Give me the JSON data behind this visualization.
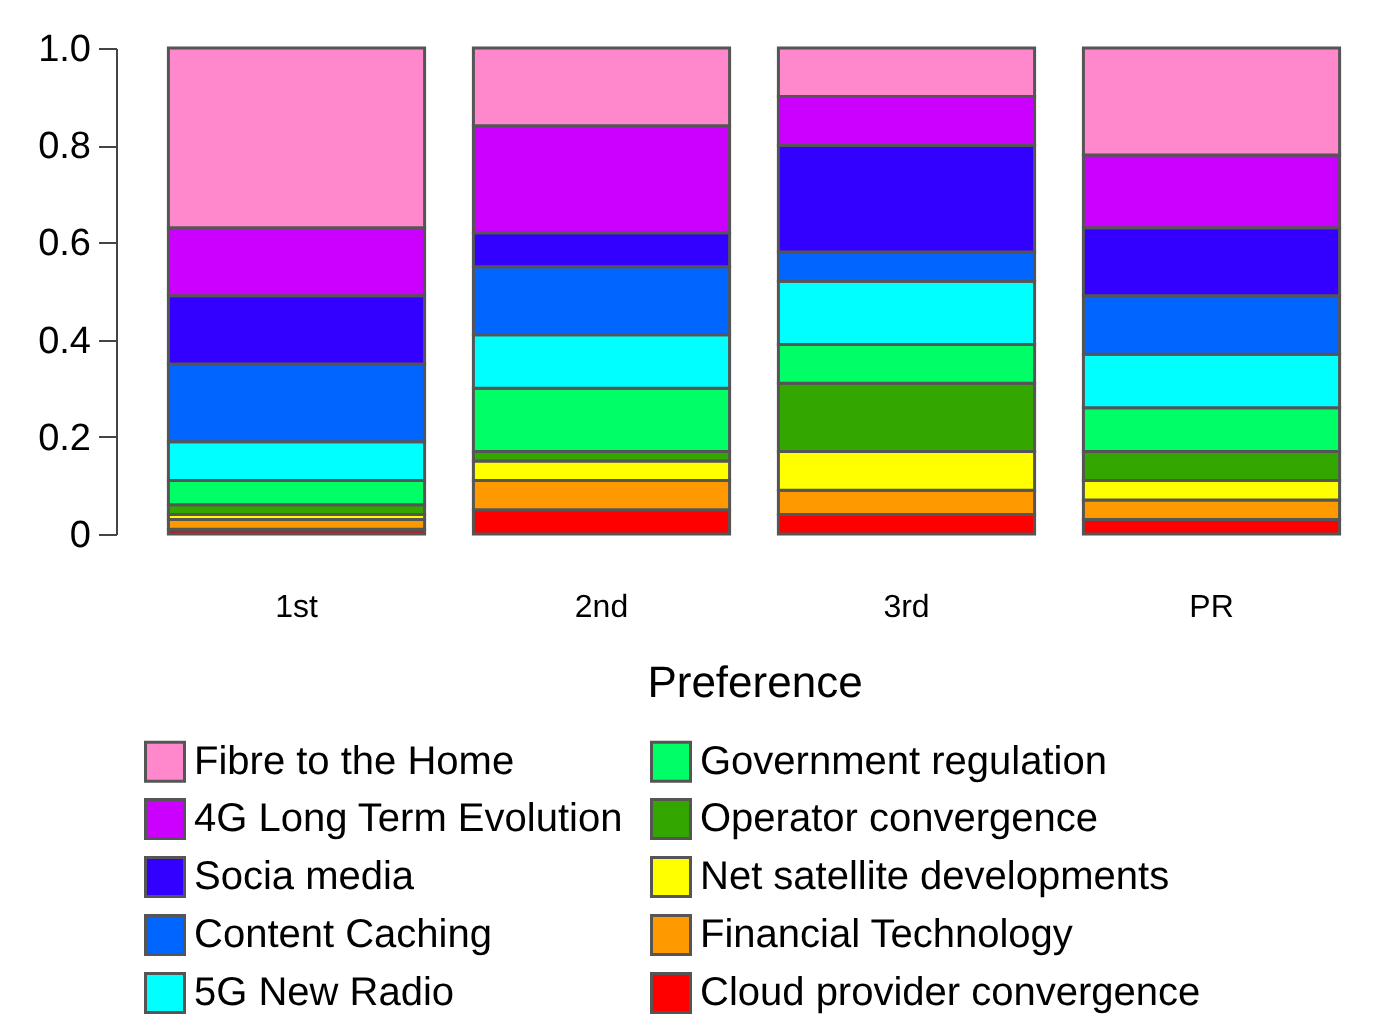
{
  "chart_data": {
    "type": "bar",
    "stacked": true,
    "xlabel": "Preference",
    "categories": [
      "1st",
      "2nd",
      "3rd",
      "PR"
    ],
    "ylim": [
      0,
      1
    ],
    "yticks": [
      0,
      {
        "value": 0.2,
        "label": "0.2"
      },
      {
        "value": 0.4,
        "label": "0.4"
      },
      {
        "value": 0.6,
        "label": "0.6"
      },
      {
        "value": 0.8,
        "label": "0.8"
      },
      {
        "value": 1,
        "label": "1.0"
      }
    ],
    "grid": false,
    "legend": "bottom",
    "series": [
      {
        "name": "Cloud provider convergence",
        "color": "#ff0000",
        "values": [
          0.01,
          0.05,
          0.04,
          0.03
        ]
      },
      {
        "name": "Financial Technology",
        "color": "#ff9900",
        "values": [
          0.02,
          0.06,
          0.05,
          0.04
        ]
      },
      {
        "name": "Net satellite developments",
        "color": "#ffff00",
        "values": [
          0.01,
          0.04,
          0.08,
          0.04
        ]
      },
      {
        "name": "Operator convergence",
        "color": "#33a700",
        "values": [
          0.02,
          0.02,
          0.14,
          0.06
        ]
      },
      {
        "name": "Government regulation",
        "color": "#00ff66",
        "values": [
          0.05,
          0.13,
          0.08,
          0.09
        ]
      },
      {
        "name": "5G New Radio",
        "color": "#00ffff",
        "values": [
          0.08,
          0.11,
          0.13,
          0.11
        ]
      },
      {
        "name": "Content Caching",
        "color": "#0066ff",
        "values": [
          0.16,
          0.14,
          0.06,
          0.12
        ]
      },
      {
        "name": "Socia media",
        "color": "#3300ff",
        "values": [
          0.14,
          0.07,
          0.22,
          0.14
        ]
      },
      {
        "name": "4G Long Term Evolution",
        "color": "#cc00ff",
        "values": [
          0.14,
          0.22,
          0.1,
          0.15
        ]
      },
      {
        "name": "Fibre to the Home",
        "color": "#ff88cc",
        "values": [
          0.37,
          0.16,
          0.1,
          0.22
        ]
      }
    ]
  }
}
